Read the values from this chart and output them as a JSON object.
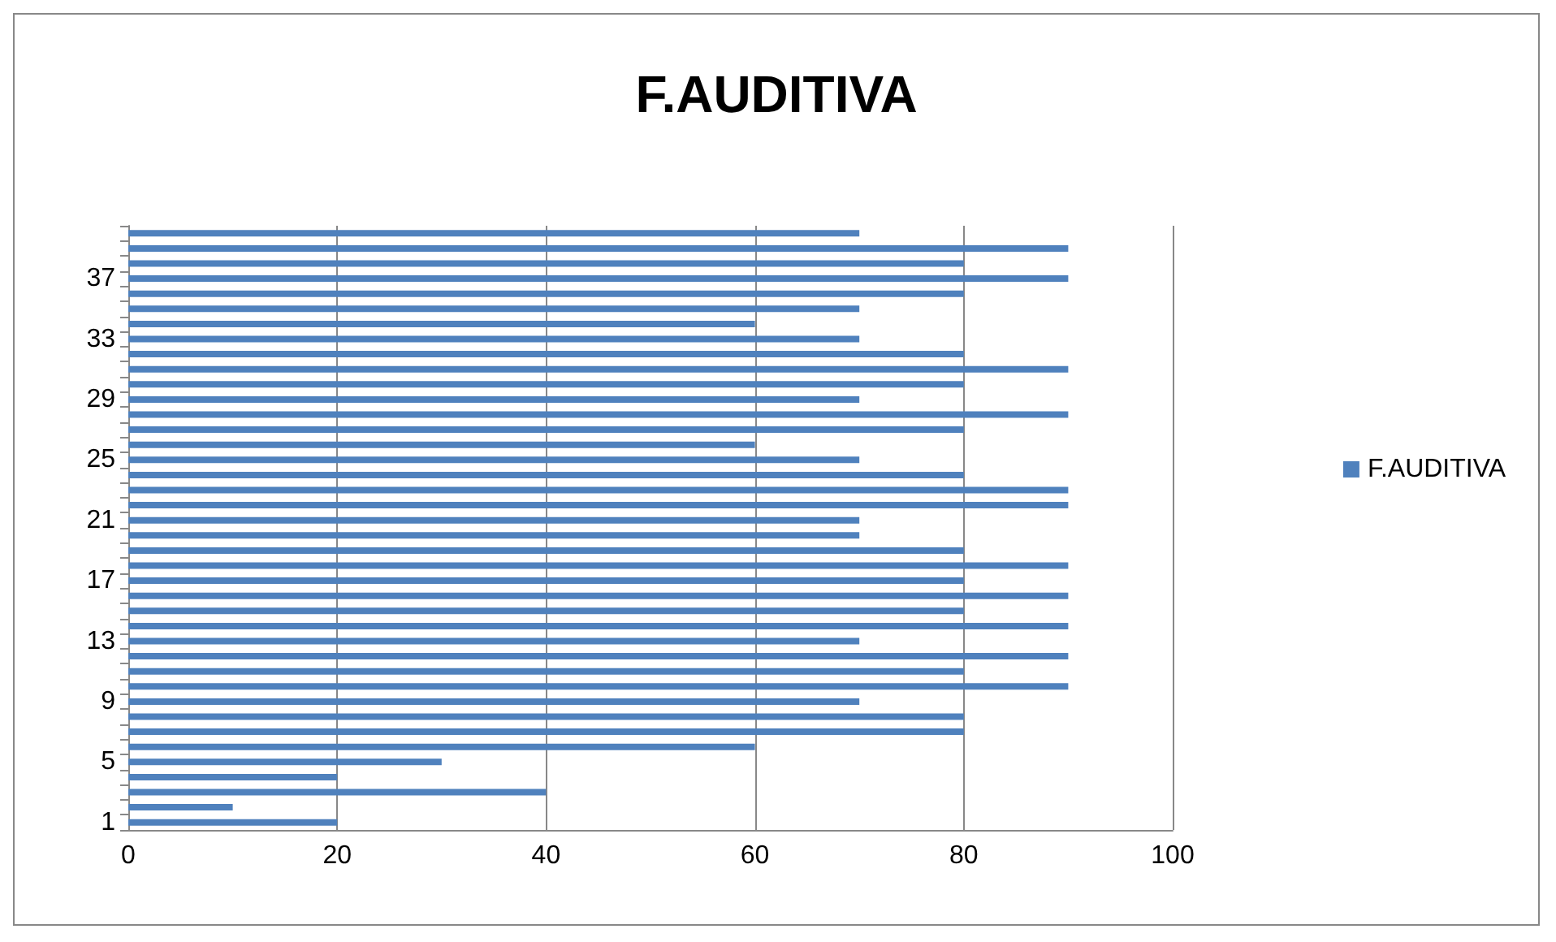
{
  "chart_data": {
    "type": "bar",
    "orientation": "horizontal",
    "title": "F.AUDITIVA",
    "categories": [
      null,
      null,
      null,
      "37",
      null,
      null,
      null,
      "33",
      null,
      null,
      null,
      "29",
      null,
      null,
      null,
      "25",
      null,
      null,
      null,
      "21",
      null,
      null,
      null,
      "17",
      null,
      null,
      null,
      "13",
      null,
      null,
      null,
      "9",
      null,
      null,
      null,
      "5",
      null,
      null,
      null,
      "1"
    ],
    "series": [
      {
        "name": "F.AUDITIVA",
        "color": "#4f81bd",
        "values": [
          70,
          90,
          80,
          90,
          80,
          70,
          60,
          70,
          80,
          90,
          80,
          70,
          90,
          80,
          60,
          70,
          80,
          90,
          90,
          70,
          70,
          80,
          90,
          80,
          90,
          80,
          90,
          70,
          90,
          80,
          90,
          70,
          80,
          80,
          60,
          30,
          20,
          40,
          10,
          20
        ]
      }
    ],
    "xlim": [
      0,
      100
    ],
    "xticks": [
      0,
      20,
      40,
      60,
      80,
      100
    ],
    "grid": "x",
    "legend": "right"
  }
}
